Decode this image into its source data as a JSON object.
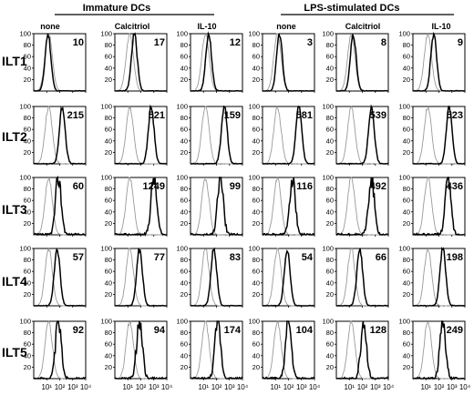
{
  "figure": {
    "group_titles": [
      "Immature DCs",
      "LPS-stimulated DCs"
    ],
    "conditions": [
      "none",
      "Calcitriol",
      "IL-10",
      "none",
      "Calcitriol",
      "IL-10"
    ],
    "markers": [
      "ILT1",
      "ILT2",
      "ILT3",
      "ILT4",
      "ILT5"
    ],
    "y_ticks": [
      "20",
      "40",
      "60",
      "80",
      "100"
    ],
    "x_ticks": [
      "10¹",
      "10²",
      "10³",
      "10⁴"
    ],
    "mfi_values": [
      [
        "10",
        "17",
        "12",
        "3",
        "8",
        "9"
      ],
      [
        "215",
        "521",
        "159",
        "581",
        "539",
        "523"
      ],
      [
        "60",
        "1249",
        "99",
        "116",
        "492",
        "436"
      ],
      [
        "57",
        "77",
        "83",
        "54",
        "66",
        "198"
      ],
      [
        "92",
        "94",
        "174",
        "104",
        "128",
        "249"
      ]
    ],
    "colors": {
      "stained": "#000000",
      "isotype_control": "#9a9a9a"
    }
  },
  "chart_data": {
    "type": "histogram_grid",
    "x_scale": "log",
    "x_range": [
      1,
      10000
    ],
    "y_range": [
      0,
      100
    ],
    "series": [
      {
        "name": "",
        "log10_peak_position": [
          [
            1.1,
            1.5,
            1.4,
            1.3,
            1.3,
            1.6
          ],
          [
            2.2,
            2.8,
            2.6,
            2.8,
            2.7,
            2.8
          ],
          [
            1.9,
            3.0,
            2.3,
            2.3,
            2.7,
            2.7
          ],
          [
            1.8,
            1.9,
            1.8,
            1.9,
            1.8,
            2.3
          ],
          [
            1.9,
            1.9,
            2.1,
            2.0,
            2.1,
            2.3
          ]
        ]
      }
    ]
  }
}
